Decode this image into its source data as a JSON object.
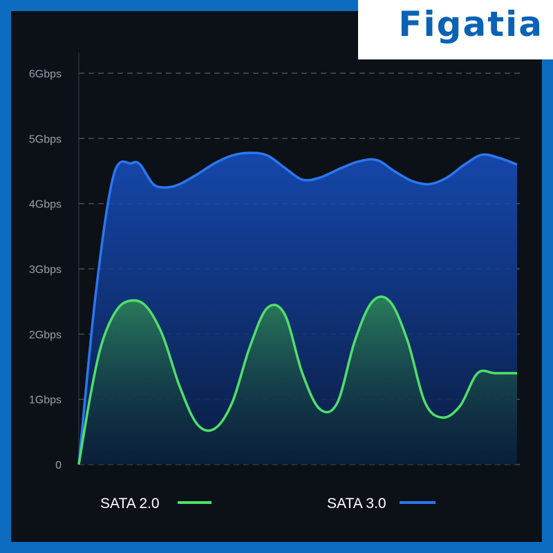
{
  "brand": {
    "name": "Figatia"
  },
  "colors": {
    "frame": "#0d6cbf",
    "background": "#0c1017",
    "grid": "#5a5f68",
    "sata3": "#2a78f0",
    "sata2": "#4ee06a"
  },
  "chart_data": {
    "type": "area",
    "title": "",
    "xlabel": "",
    "ylabel": "",
    "ylim": [
      0,
      6
    ],
    "yticks": [
      "0",
      "1Gbps",
      "2Gbps",
      "3Gbps",
      "4Gbps",
      "5Gbps",
      "6Gbps"
    ],
    "grid": true,
    "legend": "bottom",
    "series": [
      {
        "name": "SATA 3.0",
        "color": "#2a78f0",
        "x": [
          0,
          0.04,
          0.08,
          0.12,
          0.14,
          0.17,
          0.2,
          0.23,
          0.27,
          0.31,
          0.35,
          0.39,
          0.43,
          0.47,
          0.51,
          0.55,
          0.6,
          0.64,
          0.68,
          0.72,
          0.76,
          0.8,
          0.84,
          0.88,
          0.92,
          0.96,
          1.0
        ],
        "values": [
          0,
          2.7,
          4.45,
          4.62,
          4.6,
          4.3,
          4.25,
          4.3,
          4.45,
          4.62,
          4.74,
          4.78,
          4.74,
          4.55,
          4.37,
          4.4,
          4.55,
          4.65,
          4.67,
          4.5,
          4.35,
          4.3,
          4.4,
          4.6,
          4.75,
          4.7,
          4.6
        ]
      },
      {
        "name": "SATA 2.0",
        "color": "#4ee06a",
        "x": [
          0,
          0.025,
          0.05,
          0.08,
          0.11,
          0.15,
          0.19,
          0.23,
          0.27,
          0.31,
          0.35,
          0.39,
          0.43,
          0.47,
          0.51,
          0.55,
          0.59,
          0.63,
          0.67,
          0.71,
          0.75,
          0.79,
          0.83,
          0.87,
          0.91,
          0.95,
          1.0
        ],
        "values": [
          0,
          1.0,
          1.8,
          2.3,
          2.5,
          2.45,
          2.0,
          1.2,
          0.62,
          0.55,
          0.95,
          1.8,
          2.4,
          2.3,
          1.4,
          0.85,
          0.95,
          1.9,
          2.5,
          2.5,
          1.9,
          0.95,
          0.72,
          0.9,
          1.4,
          1.4,
          1.4
        ]
      }
    ]
  }
}
